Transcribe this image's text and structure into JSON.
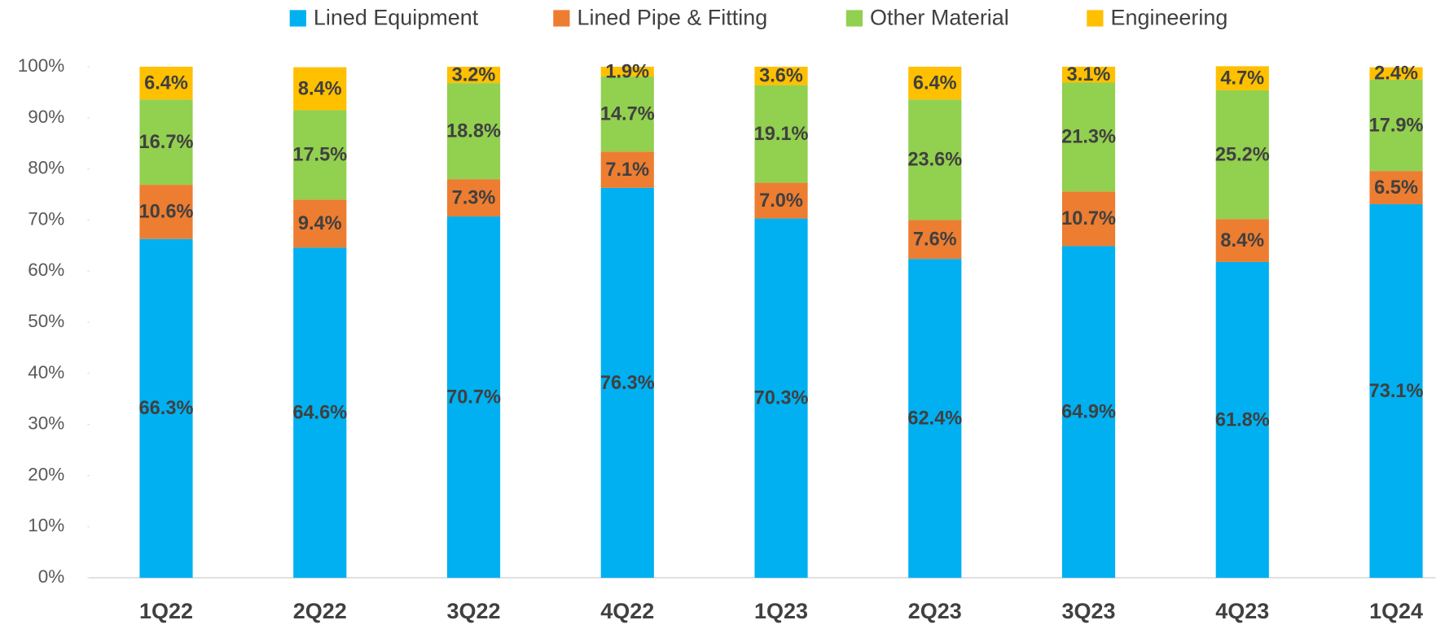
{
  "chart_data": {
    "type": "stacked_bar",
    "categories": [
      "1Q22",
      "2Q22",
      "3Q22",
      "4Q22",
      "1Q23",
      "2Q23",
      "3Q23",
      "4Q23",
      "1Q24"
    ],
    "series": [
      {
        "name": "Lined Equipment",
        "color": "#00b0f0",
        "values": [
          66.3,
          64.6,
          70.7,
          76.3,
          70.3,
          62.4,
          64.9,
          61.8,
          73.1
        ],
        "value_labels": [
          "66.3%",
          "64.6%",
          "70.7%",
          "76.3%",
          "70.3%",
          "62.4%",
          "64.9%",
          "61.8%",
          "73.1%"
        ]
      },
      {
        "name": "Lined Pipe & Fitting",
        "color": "#ed7d31",
        "values": [
          10.6,
          9.4,
          7.3,
          7.1,
          7.0,
          7.6,
          10.7,
          8.4,
          6.5
        ],
        "value_labels": [
          "10.6%",
          "9.4%",
          "7.3%",
          "7.1%",
          "7.0%",
          "7.6%",
          "10.7%",
          "8.4%",
          "6.5%"
        ]
      },
      {
        "name": "Other Material",
        "color": "#92d050",
        "values": [
          16.7,
          17.5,
          18.8,
          14.7,
          19.1,
          23.6,
          21.3,
          25.2,
          17.9
        ],
        "value_labels": [
          "16.7%",
          "17.5%",
          "18.8%",
          "14.7%",
          "19.1%",
          "23.6%",
          "21.3%",
          "25.2%",
          "17.9%"
        ]
      },
      {
        "name": "Engineering",
        "color": "#ffc000",
        "values": [
          6.4,
          8.4,
          3.2,
          1.9,
          3.6,
          6.4,
          3.1,
          4.7,
          2.4
        ],
        "value_labels": [
          "6.4%",
          "8.4%",
          "3.2%",
          "1.9%",
          "3.6%",
          "6.4%",
          "3.1%",
          "4.7%",
          "2.4%"
        ]
      }
    ],
    "ylim": [
      0,
      100
    ],
    "yticks": [
      {
        "value": 0,
        "label": "0%"
      },
      {
        "value": 10,
        "label": "10%"
      },
      {
        "value": 20,
        "label": "20%"
      },
      {
        "value": 30,
        "label": "30%"
      },
      {
        "value": 40,
        "label": "40%"
      },
      {
        "value": 50,
        "label": "50%"
      },
      {
        "value": 60,
        "label": "60%"
      },
      {
        "value": 70,
        "label": "70%"
      },
      {
        "value": 80,
        "label": "80%"
      },
      {
        "value": 90,
        "label": "90%"
      },
      {
        "value": 100,
        "label": "100%"
      }
    ],
    "legend": "top"
  }
}
